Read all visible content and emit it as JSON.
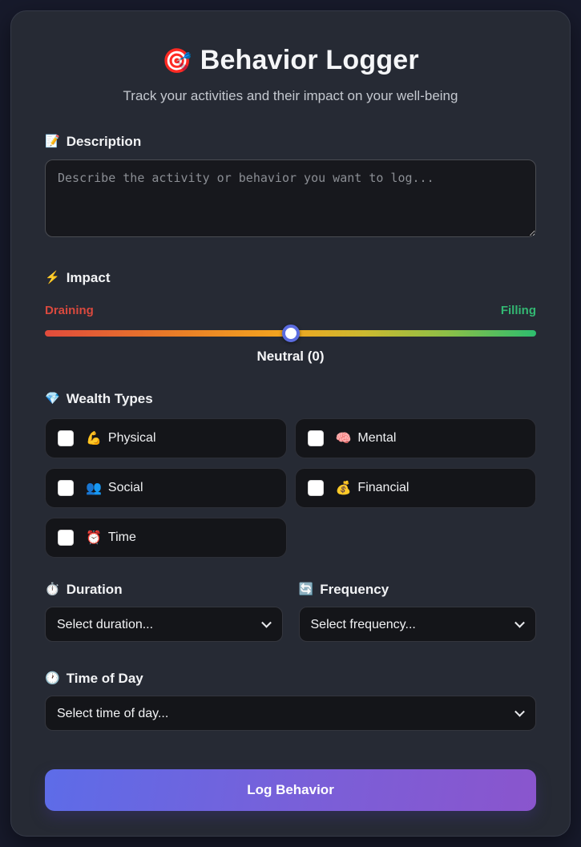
{
  "header": {
    "icon": "🎯",
    "title": "Behavior Logger",
    "subtitle": "Track your activities and their impact on your well-being"
  },
  "description": {
    "icon": "📝",
    "label": "Description",
    "placeholder": "Describe the activity or behavior you want to log...",
    "value": ""
  },
  "impact": {
    "icon": "⚡",
    "label": "Impact",
    "min_label": "Draining",
    "max_label": "Filling",
    "value": 0,
    "value_label": "Neutral (0)",
    "thumb_position_percent": 50,
    "colors": {
      "draining_label": "#d9493e",
      "filling_label": "#33b873",
      "track_gradient": [
        "#e14b3c",
        "#f3a41f",
        "#2dbd6e"
      ],
      "thumb_border": "#5b6ce0"
    }
  },
  "wealth_types": {
    "icon": "💎",
    "label": "Wealth Types",
    "options": [
      {
        "icon": "💪",
        "label": "Physical",
        "checked": false
      },
      {
        "icon": "🧠",
        "label": "Mental",
        "checked": false
      },
      {
        "icon": "👥",
        "label": "Social",
        "checked": false
      },
      {
        "icon": "💰",
        "label": "Financial",
        "checked": false
      },
      {
        "icon": "⏰",
        "label": "Time",
        "checked": false
      }
    ]
  },
  "duration": {
    "icon": "⏱️",
    "label": "Duration",
    "selected": "Select duration...",
    "options": [
      "Select duration..."
    ]
  },
  "frequency": {
    "icon": "🔄",
    "label": "Frequency",
    "selected": "Select frequency...",
    "options": [
      "Select frequency..."
    ]
  },
  "time_of_day": {
    "icon": "🕐",
    "label": "Time of Day",
    "selected": "Select time of day...",
    "options": [
      "Select time of day..."
    ]
  },
  "submit": {
    "label": "Log Behavior",
    "gradient": [
      "#5d6ce8",
      "#8a55cd"
    ]
  },
  "theme": {
    "page_background": "#171a2b",
    "card_background": "#262a34",
    "field_background": "#141519"
  }
}
